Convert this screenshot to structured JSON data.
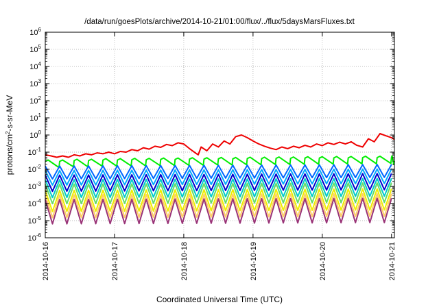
{
  "chart_data": {
    "type": "line",
    "title": "/data/run/goesPlots/archive/2014-10-21/01:00/flux/../flux/5daysMarsFluxes.txt",
    "xlabel": "Coordinated Universal Time (UTC)",
    "ylabel": "protons/cm2-s-sr-MeV",
    "y_scale": "log",
    "ylim": [
      1e-06,
      1000000.0
    ],
    "y_ticks": [
      {
        "base": "10",
        "exp": "-6"
      },
      {
        "base": "10",
        "exp": "-5"
      },
      {
        "base": "10",
        "exp": "-4"
      },
      {
        "base": "10",
        "exp": "-3"
      },
      {
        "base": "10",
        "exp": "-2"
      },
      {
        "base": "10",
        "exp": "-1"
      },
      {
        "base": "10",
        "exp": "0"
      },
      {
        "base": "10",
        "exp": "1"
      },
      {
        "base": "10",
        "exp": "2"
      },
      {
        "base": "10",
        "exp": "3"
      },
      {
        "base": "10",
        "exp": "4"
      },
      {
        "base": "10",
        "exp": "5"
      },
      {
        "base": "10",
        "exp": "6"
      }
    ],
    "xlim": [
      "2014-10-16 00:00",
      "2014-10-21 01:00"
    ],
    "x_ticks": [
      "2014-10-16",
      "2014-10-17",
      "2014-10-18",
      "2014-10-19",
      "2014-10-20",
      "2014-10-21"
    ],
    "grid": true,
    "series": [
      {
        "color": "#ee0000",
        "x": [
          "2014-10-16 00:00",
          "2014-10-16 02:00",
          "2014-10-16 04:00",
          "2014-10-16 06:00",
          "2014-10-16 08:00",
          "2014-10-16 10:00",
          "2014-10-16 12:00",
          "2014-10-16 14:00",
          "2014-10-16 16:00",
          "2014-10-16 18:00",
          "2014-10-16 20:00",
          "2014-10-16 22:00",
          "2014-10-17 00:00",
          "2014-10-17 02:00",
          "2014-10-17 04:00",
          "2014-10-17 06:00",
          "2014-10-17 08:00",
          "2014-10-17 10:00",
          "2014-10-17 12:00",
          "2014-10-17 14:00",
          "2014-10-17 16:00",
          "2014-10-17 18:00",
          "2014-10-17 20:00",
          "2014-10-17 22:00",
          "2014-10-18 00:00",
          "2014-10-18 02:00",
          "2014-10-18 04:00",
          "2014-10-18 05:00",
          "2014-10-18 06:00",
          "2014-10-18 08:00",
          "2014-10-18 10:00",
          "2014-10-18 12:00",
          "2014-10-18 14:00",
          "2014-10-18 16:00",
          "2014-10-18 18:00",
          "2014-10-18 20:00",
          "2014-10-18 22:00",
          "2014-10-19 00:00",
          "2014-10-19 02:00",
          "2014-10-19 04:00",
          "2014-10-19 06:00",
          "2014-10-19 08:00",
          "2014-10-19 10:00",
          "2014-10-19 12:00",
          "2014-10-19 14:00",
          "2014-10-19 16:00",
          "2014-10-19 18:00",
          "2014-10-19 20:00",
          "2014-10-19 22:00",
          "2014-10-20 00:00",
          "2014-10-20 02:00",
          "2014-10-20 04:00",
          "2014-10-20 06:00",
          "2014-10-20 08:00",
          "2014-10-20 10:00",
          "2014-10-20 12:00",
          "2014-10-20 14:00",
          "2014-10-20 16:00",
          "2014-10-20 18:00",
          "2014-10-20 20:00",
          "2014-10-20 22:00",
          "2014-10-21 00:00",
          "2014-10-21 01:00"
        ],
        "y": [
          0.07,
          0.06,
          0.05,
          0.06,
          0.05,
          0.07,
          0.06,
          0.08,
          0.07,
          0.09,
          0.08,
          0.1,
          0.08,
          0.11,
          0.1,
          0.14,
          0.12,
          0.18,
          0.15,
          0.22,
          0.19,
          0.28,
          0.24,
          0.35,
          0.3,
          0.16,
          0.09,
          0.07,
          0.2,
          0.12,
          0.3,
          0.2,
          0.45,
          0.3,
          0.8,
          1.0,
          0.7,
          0.45,
          0.3,
          0.22,
          0.17,
          0.14,
          0.2,
          0.16,
          0.22,
          0.18,
          0.25,
          0.2,
          0.3,
          0.24,
          0.35,
          0.28,
          0.38,
          0.3,
          0.4,
          0.25,
          0.2,
          0.6,
          0.4,
          1.2,
          0.9,
          0.7,
          0.55
        ]
      },
      {
        "color": "#00ee00",
        "x": [
          "2014-10-16 00:00",
          "2014-10-16 05:00",
          "2014-10-16 10:00",
          "2014-10-16 15:00",
          "2014-10-16 20:00",
          "2014-10-17 01:00",
          "2014-10-17 06:00",
          "2014-10-17 11:00",
          "2014-10-17 16:00",
          "2014-10-17 21:00",
          "2014-10-18 02:00",
          "2014-10-18 07:00",
          "2014-10-18 12:00",
          "2014-10-18 17:00",
          "2014-10-18 22:00",
          "2014-10-19 03:00",
          "2014-10-19 08:00",
          "2014-10-19 13:00",
          "2014-10-19 18:00",
          "2014-10-19 23:00",
          "2014-10-20 04:00",
          "2014-10-20 09:00",
          "2014-10-20 14:00",
          "2014-10-20 19:00",
          "2014-10-21 00:00",
          "2014-10-21 01:00"
        ],
        "y": [
          0.02,
          0.02,
          0.022,
          0.022,
          0.024,
          0.024,
          0.025,
          0.025,
          0.026,
          0.026,
          0.027,
          0.027,
          0.028,
          0.028,
          0.029,
          0.029,
          0.03,
          0.03,
          0.031,
          0.031,
          0.032,
          0.032,
          0.033,
          0.033,
          0.035,
          0.03
        ]
      },
      {
        "color": "#0066ff",
        "x": [
          "2014-10-16 00:00",
          "2014-10-21 01:00"
        ],
        "y": [
          0.008,
          0.01
        ]
      },
      {
        "color": "#00aaff",
        "x": [
          "2014-10-16 00:00",
          "2014-10-21 01:00"
        ],
        "y": [
          0.004,
          0.005
        ]
      },
      {
        "color": "#0000cc",
        "x": [
          "2014-10-16 00:00",
          "2014-10-21 01:00"
        ],
        "y": [
          0.002,
          0.0025
        ]
      },
      {
        "color": "#00cccc",
        "x": [
          "2014-10-16 00:00",
          "2014-10-21 01:00"
        ],
        "y": [
          0.001,
          0.0012
        ]
      },
      {
        "color": "#66dd66",
        "x": [
          "2014-10-16 00:00",
          "2014-10-21 01:00"
        ],
        "y": [
          0.0005,
          0.0006
        ]
      },
      {
        "color": "#eeee00",
        "x": [
          "2014-10-16 00:00",
          "2014-10-21 01:00"
        ],
        "y": [
          0.0002,
          0.00025
        ]
      },
      {
        "color": "#ffcc66",
        "x": [
          "2014-10-16 00:00",
          "2014-10-21 01:00"
        ],
        "y": [
          0.0001,
          0.00012
        ]
      },
      {
        "color": "#993377",
        "x": [
          "2014-10-16 00:00",
          "2014-10-21 01:00"
        ],
        "y": [
          5e-05,
          6e-05
        ]
      }
    ]
  }
}
